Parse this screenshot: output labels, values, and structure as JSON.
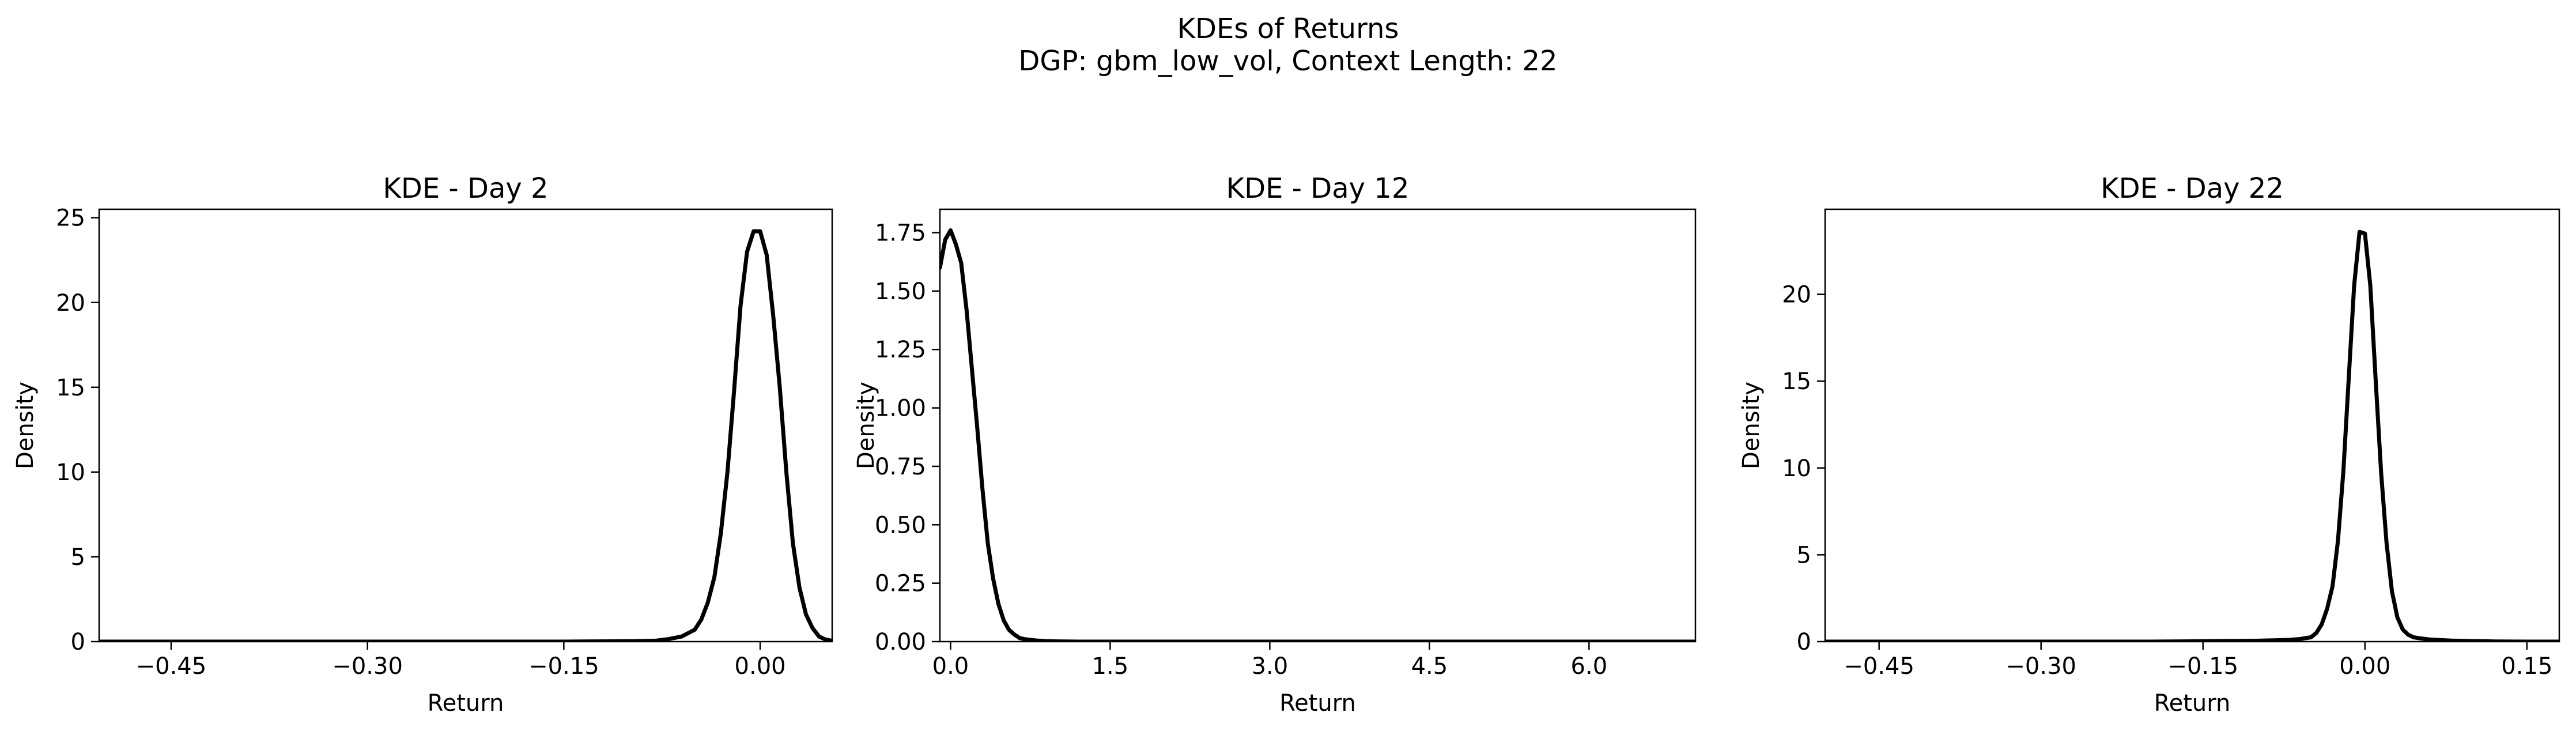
{
  "figure": {
    "title_line1": "KDEs of Returns",
    "title_line2": "DGP: gbm_low_vol, Context Length: 22"
  },
  "chart_data": [
    {
      "type": "line",
      "title": "KDE - Day 2",
      "xlabel": "Return",
      "ylabel": "Density",
      "xlim": [
        -0.505,
        0.055
      ],
      "ylim": [
        0,
        25.5
      ],
      "xticks": [
        -0.45,
        -0.3,
        -0.15,
        0.0
      ],
      "xtick_labels": [
        "−0.45",
        "−0.30",
        "−0.15",
        "0.00"
      ],
      "yticks": [
        0,
        5,
        10,
        15,
        20,
        25
      ],
      "ytick_labels": [
        "0",
        "5",
        "10",
        "15",
        "20",
        "25"
      ],
      "grid": false,
      "series": [
        {
          "color": "#000000",
          "x": [
            -0.505,
            -0.45,
            -0.4,
            -0.3,
            -0.2,
            -0.15,
            -0.1,
            -0.08,
            -0.07,
            -0.06,
            -0.05,
            -0.045,
            -0.04,
            -0.035,
            -0.03,
            -0.025,
            -0.02,
            -0.015,
            -0.01,
            -0.005,
            0.0,
            0.005,
            0.01,
            0.015,
            0.02,
            0.025,
            0.03,
            0.035,
            0.04,
            0.045,
            0.05,
            0.055
          ],
          "y": [
            0,
            0,
            0,
            0,
            0,
            0,
            0.02,
            0.05,
            0.15,
            0.3,
            0.7,
            1.3,
            2.3,
            3.8,
            6.4,
            10.0,
            14.7,
            19.8,
            23.0,
            24.2,
            24.2,
            22.8,
            19.2,
            15.0,
            10.0,
            5.8,
            3.2,
            1.6,
            0.8,
            0.3,
            0.12,
            0.05
          ]
        }
      ]
    },
    {
      "type": "line",
      "title": "KDE - Day 12",
      "xlabel": "Return",
      "ylabel": "Density",
      "xlim": [
        -0.1,
        7.0
      ],
      "ylim": [
        0,
        1.85
      ],
      "xticks": [
        0.0,
        1.5,
        3.0,
        4.5,
        6.0
      ],
      "xtick_labels": [
        "0.0",
        "1.5",
        "3.0",
        "4.5",
        "6.0"
      ],
      "yticks": [
        0,
        0.25,
        0.5,
        0.75,
        1.0,
        1.25,
        1.5,
        1.75
      ],
      "ytick_labels": [
        "0.00",
        "0.25",
        "0.50",
        "0.75",
        "1.00",
        "1.25",
        "1.50",
        "1.75"
      ],
      "grid": false,
      "series": [
        {
          "color": "#000000",
          "x": [
            -0.1,
            -0.05,
            0.0,
            0.05,
            0.1,
            0.15,
            0.2,
            0.25,
            0.3,
            0.35,
            0.4,
            0.45,
            0.5,
            0.55,
            0.6,
            0.65,
            0.7,
            0.8,
            0.9,
            1.0,
            1.2,
            1.5,
            2.0,
            3.0,
            4.0,
            5.0,
            6.0,
            7.0
          ],
          "y": [
            1.6,
            1.72,
            1.76,
            1.7,
            1.62,
            1.42,
            1.17,
            0.92,
            0.65,
            0.42,
            0.27,
            0.16,
            0.09,
            0.05,
            0.03,
            0.015,
            0.01,
            0.005,
            0.002,
            0.001,
            0,
            0,
            0,
            0,
            0,
            0,
            0,
            0
          ]
        }
      ]
    },
    {
      "type": "line",
      "title": "KDE - Day 22",
      "xlabel": "Return",
      "ylabel": "Density",
      "xlim": [
        -0.5,
        0.18
      ],
      "ylim": [
        0,
        24.9
      ],
      "xticks": [
        -0.45,
        -0.3,
        -0.15,
        0.0,
        0.15
      ],
      "xtick_labels": [
        "−0.45",
        "−0.30",
        "−0.15",
        "0.00",
        "0.15"
      ],
      "yticks": [
        0,
        5,
        10,
        15,
        20
      ],
      "ytick_labels": [
        "0",
        "5",
        "10",
        "15",
        "20"
      ],
      "grid": false,
      "series": [
        {
          "color": "#000000",
          "x": [
            -0.5,
            -0.4,
            -0.3,
            -0.2,
            -0.15,
            -0.1,
            -0.07,
            -0.06,
            -0.05,
            -0.045,
            -0.04,
            -0.035,
            -0.03,
            -0.025,
            -0.02,
            -0.015,
            -0.01,
            -0.005,
            0.0,
            0.005,
            0.01,
            0.015,
            0.02,
            0.025,
            0.03,
            0.035,
            0.04,
            0.045,
            0.05,
            0.06,
            0.08,
            0.1,
            0.12,
            0.15,
            0.18
          ],
          "y": [
            0,
            0,
            0,
            0,
            0.02,
            0.05,
            0.1,
            0.15,
            0.25,
            0.5,
            1.0,
            1.9,
            3.2,
            5.8,
            9.8,
            15.2,
            20.5,
            23.6,
            23.5,
            20.5,
            15.0,
            9.7,
            5.7,
            2.9,
            1.4,
            0.7,
            0.4,
            0.25,
            0.2,
            0.12,
            0.06,
            0.03,
            0.01,
            0,
            0
          ]
        }
      ]
    }
  ]
}
